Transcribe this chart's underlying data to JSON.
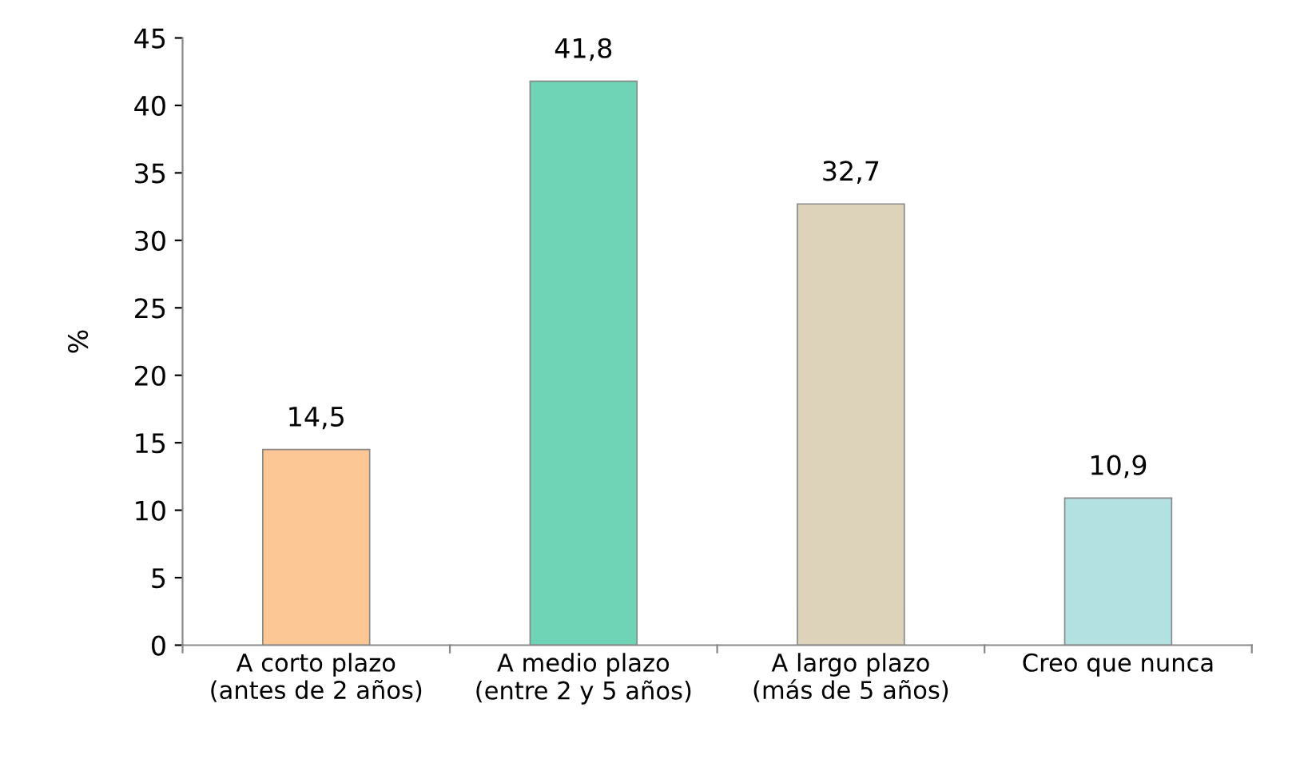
{
  "chart_data": {
    "type": "bar",
    "ylabel": "%",
    "categories": [
      "A corto plazo\n(antes de 2 años)",
      "A medio plazo\n(entre 2 y 5 años)",
      "A largo plazo\n(más de 5 años)",
      "Creo que nunca"
    ],
    "values": [
      14.5,
      41.8,
      32.7,
      10.9
    ],
    "colors": [
      "#fcc794",
      "#6fd3b5",
      "#ddd3bb",
      "#b3e1e1"
    ],
    "value_labels": [
      "14,5",
      "41,8",
      "32,7",
      "10,9"
    ],
    "ylim": [
      0,
      45
    ],
    "yticks": [
      0,
      5,
      10,
      15,
      20,
      25,
      30,
      35,
      40,
      45
    ],
    "grid": false
  }
}
